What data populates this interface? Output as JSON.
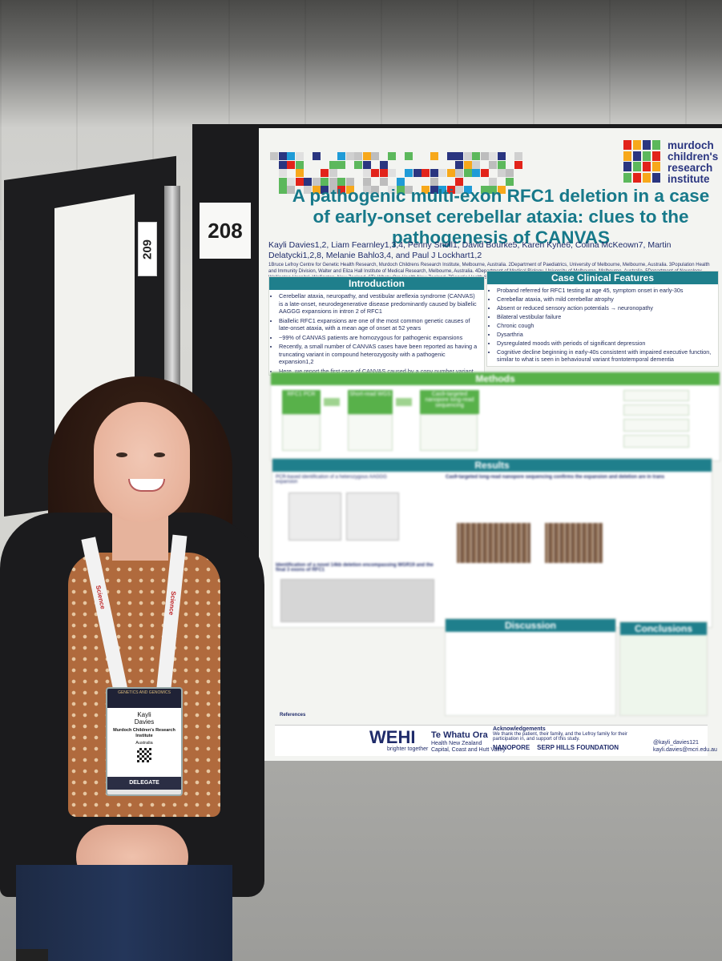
{
  "left_poster": {
    "number": "209"
  },
  "board": {
    "number": "208"
  },
  "poster": {
    "institute": [
      "murdoch",
      "children's",
      "research",
      "institute"
    ],
    "title": "A pathogenic multi-exon RFC1 deletion in a case of early-onset cerebellar ataxia: clues to the pathogenesis of CANVAS",
    "authors": "Kayli Davies1,2, Liam Fearnley1,3,4, Penny Snell1, David Bourke5, Karen Kyne6, Colina McKeown7, Martin Delatycki1,2,8, Melanie Bahlo3,4, and Paul J Lockhart1,2",
    "affiliations": "1Bruce Lefroy Centre for Genetic Health Research, Murdoch Childrens Research Institute, Melbourne, Australia. 2Department of Paediatrics, University of Melbourne, Melbourne, Australia. 3Population Health and Immunity Division, Walter and Eliza Hall Institute of Medical Research, Melbourne, Australia. 4Department of Medical Biology, University of Melbourne, Melbourne, Australia. 5Department of Neurology, Wellington Hospital, Wellington, New Zealand. 6Te Whatu Ora Health New Zealand. 7Genetic Health Service New Zealand, Wellington Hospital, Wellington, New Zealand. 8Victorian Clinical Genetics Services, Murdoch Childrens Research Institute, Melbourne, Australia.",
    "introduction": {
      "heading": "Introduction",
      "items": [
        "Cerebellar ataxia, neuropathy, and vestibular areflexia syndrome (CANVAS) is a late-onset, neurodegenerative disease predominantly caused by biallelic AAGGG expansions in intron 2 of RFC1",
        "Biallelic RFC1 expansions are one of the most common genetic causes of late-onset ataxia, with a mean age of onset at 52 years",
        "~99% of CANVAS patients are homozygous for pathogenic expansions",
        "Recently, a small number of CANVAS cases have been reported as having a truncating variant in compound heterozygosity with a pathogenic expansion1,2",
        "Here, we report the first case of CANVAS caused by a copy number variant (CNV) and an AAGGG expansion"
      ]
    },
    "case": {
      "heading": "Case Clinical Features",
      "items": [
        "Proband referred for RFC1 testing at age 45, symptom onset in early-30s",
        "Cerebellar ataxia, with mild cerebellar atrophy",
        "Absent or reduced sensory action potentials → neuronopathy",
        "Bilateral vestibular failure",
        "Chronic cough",
        "Dysarthria",
        "Dysregulated moods with periods of significant depression",
        "Cognitive decline beginning in early-40s consistent with impaired executive function, similar to what is seen in behavioural variant frontotemporal dementia"
      ]
    },
    "methods": {
      "heading": "Methods",
      "steps": [
        "RFC1 PCR",
        "Short-read WGS",
        "Cas9-targeted nanopore long-read sequencing"
      ]
    },
    "results": {
      "heading": "Results",
      "sub1": "PCR-based identification of a heterozygous AAGGG expansion",
      "sub2": "Cas9-targeted long-read nanopore sequencing confirms the expansion and deletion are in trans",
      "sub3": "Identification of a novel 14kb deletion encompassing WGR19 and the final 3 exons of RFC1"
    },
    "discussion": {
      "heading": "Discussion"
    },
    "conclusions": {
      "heading": "Conclusions"
    },
    "references": {
      "heading": "References"
    },
    "footer": {
      "wehi": "WEHI",
      "wehi_tag": "brighter together",
      "twora": "Te Whatu Ora",
      "twora_sub": "Health New Zealand",
      "twora_region": "Capital, Coast and Hutt Valley",
      "ack_heading": "Acknowledgements",
      "ack_text": "We thank the patient, their family, and the Lefroy family for their participation in, and support of this study.",
      "sponsor1": "NANOPORE",
      "sponsor2": "SERP HILLS FOUNDATION",
      "twitter": "@kayli_davies121",
      "email": "kayli.davies@mcri.edu.au"
    }
  },
  "badge": {
    "event": "GENETICS AND GENOMICS",
    "name_first": "Kayli",
    "name_last": "Davies",
    "organisation": "Murdoch Children's Research Institute",
    "country": "Australia",
    "role": "DELEGATE"
  },
  "lanyard": {
    "text_left": "Science",
    "text_right": "Science"
  },
  "colors": {
    "teal": "#1f7f8c",
    "green": "#58b14a",
    "navy": "#1f2b6a"
  }
}
